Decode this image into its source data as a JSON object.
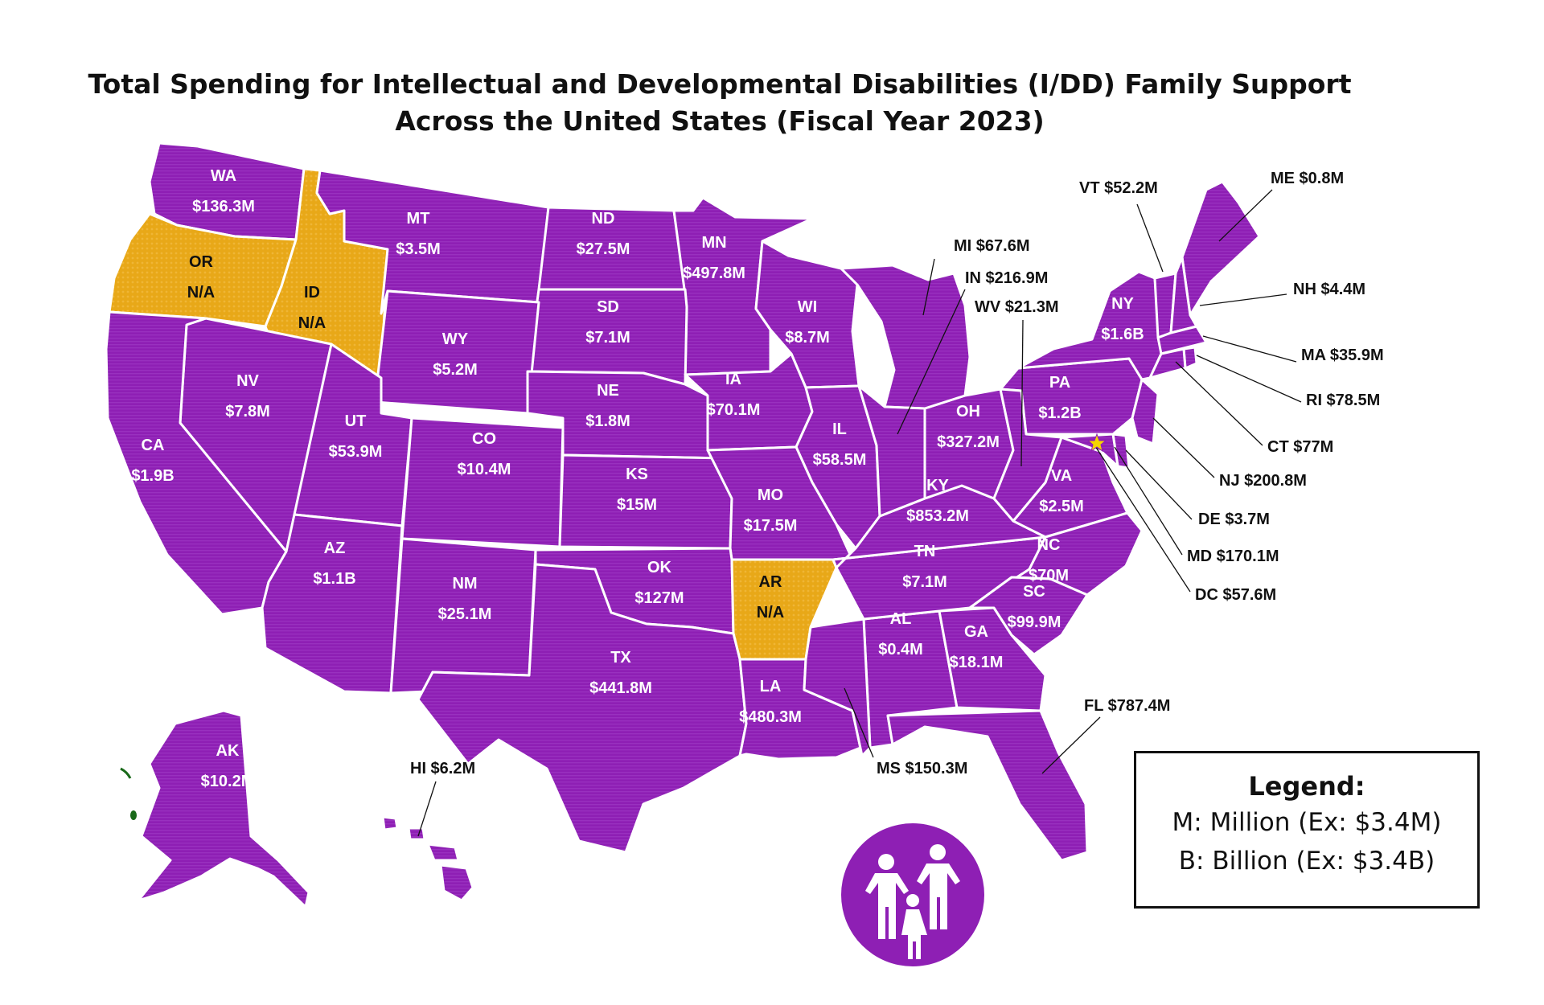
{
  "title": {
    "line1": "Total Spending for Intellectual and Developmental Disabilities (I/DD) Family Support",
    "line2": "Across the United States (Fiscal Year 2023)"
  },
  "colors": {
    "funded": "#8e1fb4",
    "na": "#e8a818",
    "border": "#ffffff",
    "text": "#111111"
  },
  "states": [
    {
      "abbr": "WA",
      "value": "$136.3M",
      "status": "funded"
    },
    {
      "abbr": "OR",
      "value": "N/A",
      "status": "na"
    },
    {
      "abbr": "ID",
      "value": "N/A",
      "status": "na"
    },
    {
      "abbr": "MT",
      "value": "$3.5M",
      "status": "funded"
    },
    {
      "abbr": "ND",
      "value": "$27.5M",
      "status": "funded"
    },
    {
      "abbr": "MN",
      "value": "$497.8M",
      "status": "funded"
    },
    {
      "abbr": "WI",
      "value": "$8.7M",
      "status": "funded"
    },
    {
      "abbr": "SD",
      "value": "$7.1M",
      "status": "funded"
    },
    {
      "abbr": "WY",
      "value": "$5.2M",
      "status": "funded"
    },
    {
      "abbr": "NV",
      "value": "$7.8M",
      "status": "funded"
    },
    {
      "abbr": "CA",
      "value": "$1.9B",
      "status": "funded"
    },
    {
      "abbr": "UT",
      "value": "$53.9M",
      "status": "funded"
    },
    {
      "abbr": "CO",
      "value": "$10.4M",
      "status": "funded"
    },
    {
      "abbr": "NE",
      "value": "$1.8M",
      "status": "funded"
    },
    {
      "abbr": "IA",
      "value": "$70.1M",
      "status": "funded"
    },
    {
      "abbr": "IL",
      "value": "$58.5M",
      "status": "funded"
    },
    {
      "abbr": "KS",
      "value": "$15M",
      "status": "funded"
    },
    {
      "abbr": "MO",
      "value": "$17.5M",
      "status": "funded"
    },
    {
      "abbr": "AZ",
      "value": "$1.1B",
      "status": "funded"
    },
    {
      "abbr": "NM",
      "value": "$25.1M",
      "status": "funded"
    },
    {
      "abbr": "OK",
      "value": "$127M",
      "status": "funded"
    },
    {
      "abbr": "AR",
      "value": "N/A",
      "status": "na"
    },
    {
      "abbr": "TX",
      "value": "$441.8M",
      "status": "funded"
    },
    {
      "abbr": "LA",
      "value": "$480.3M",
      "status": "funded"
    },
    {
      "abbr": "AL",
      "value": "$0.4M",
      "status": "funded"
    },
    {
      "abbr": "GA",
      "value": "$18.1M",
      "status": "funded"
    },
    {
      "abbr": "TN",
      "value": "$7.1M",
      "status": "funded"
    },
    {
      "abbr": "KY",
      "value": "$853.2M",
      "status": "funded"
    },
    {
      "abbr": "OH",
      "value": "$327.2M",
      "status": "funded"
    },
    {
      "abbr": "PA",
      "value": "$1.2B",
      "status": "funded"
    },
    {
      "abbr": "NY",
      "value": "$1.6B",
      "status": "funded"
    },
    {
      "abbr": "VA",
      "value": "$2.5M",
      "status": "funded"
    },
    {
      "abbr": "NC",
      "value": "$70M",
      "status": "funded"
    },
    {
      "abbr": "SC",
      "value": "$99.9M",
      "status": "funded"
    },
    {
      "abbr": "AK",
      "value": "$10.2M",
      "status": "funded"
    },
    {
      "abbr": "MI",
      "value": "$67.6M",
      "status": "funded"
    },
    {
      "abbr": "IN",
      "value": "$216.9M",
      "status": "funded"
    },
    {
      "abbr": "WV",
      "value": "$21.3M",
      "status": "funded"
    },
    {
      "abbr": "VT",
      "value": "$52.2M",
      "status": "funded"
    },
    {
      "abbr": "ME",
      "value": "$0.8M",
      "status": "funded"
    },
    {
      "abbr": "NH",
      "value": "$4.4M",
      "status": "funded"
    },
    {
      "abbr": "MA",
      "value": "$35.9M",
      "status": "funded"
    },
    {
      "abbr": "RI",
      "value": "$78.5M",
      "status": "funded"
    },
    {
      "abbr": "CT",
      "value": "$77M",
      "status": "funded"
    },
    {
      "abbr": "NJ",
      "value": "$200.8M",
      "status": "funded"
    },
    {
      "abbr": "DE",
      "value": "$3.7M",
      "status": "funded"
    },
    {
      "abbr": "MD",
      "value": "$170.1M",
      "status": "funded"
    },
    {
      "abbr": "DC",
      "value": "$57.6M",
      "status": "funded"
    },
    {
      "abbr": "FL",
      "value": "$787.4M",
      "status": "funded"
    },
    {
      "abbr": "MS",
      "value": "$150.3M",
      "status": "funded"
    },
    {
      "abbr": "HI",
      "value": "$6.2M",
      "status": "funded"
    }
  ],
  "legend": {
    "title": "Legend:",
    "million": "M: Million (Ex: $3.4M)",
    "billion": "B: Billion (Ex: $3.4B)"
  },
  "emblem_icon": "family-icon"
}
